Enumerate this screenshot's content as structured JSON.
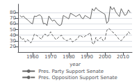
{
  "chart_data": {
    "type": "line",
    "xlabel": "year",
    "x": [
      1953,
      1954,
      1955,
      1956,
      1957,
      1958,
      1959,
      1960,
      1961,
      1962,
      1963,
      1964,
      1965,
      1966,
      1967,
      1968,
      1969,
      1970,
      1971,
      1972,
      1973,
      1974,
      1975,
      1976,
      1977,
      1978,
      1979,
      1980,
      1981,
      1982,
      1983,
      1984,
      1985,
      1986,
      1987,
      1988,
      1989,
      1990,
      1991,
      1992,
      1993,
      1994,
      1995,
      1996,
      1997,
      1998,
      1999,
      2000,
      2001,
      2002,
      2003,
      2004,
      2005,
      2006,
      2007,
      2008,
      2009,
      2010,
      2011,
      2012,
      2013,
      2014
    ],
    "series": [
      {
        "name": "Pres. Party Support Senate",
        "color": "#666666",
        "line_style": "solid",
        "values": [
          75,
          72,
          74,
          70,
          68,
          65,
          62,
          60,
          74,
          73,
          75,
          76,
          73,
          60,
          61,
          57,
          74,
          69,
          65,
          67,
          63,
          59,
          57,
          59,
          75,
          73,
          71,
          69,
          79,
          77,
          75,
          73,
          75,
          77,
          71,
          69,
          75,
          73,
          71,
          69,
          87,
          83,
          89,
          85,
          83,
          81,
          79,
          77,
          61,
          65,
          91,
          85,
          89,
          81,
          77,
          73,
          87,
          81,
          75,
          77,
          85,
          80
        ]
      },
      {
        "name": "Pres. Opposition Support Senate",
        "color": "#666666",
        "line_style": "dashed",
        "values": [
          38,
          32,
          34,
          28,
          32,
          30,
          26,
          32,
          42,
          40,
          38,
          35,
          33,
          40,
          42,
          38,
          40,
          46,
          40,
          36,
          32,
          35,
          38,
          40,
          34,
          32,
          30,
          32,
          34,
          28,
          30,
          32,
          34,
          40,
          38,
          36,
          38,
          40,
          42,
          44,
          26,
          24,
          36,
          30,
          34,
          36,
          30,
          32,
          48,
          52,
          50,
          46,
          44,
          40,
          36,
          32,
          30,
          34,
          38,
          40,
          46,
          42
        ]
      }
    ],
    "xlim": [
      1952,
      2015
    ],
    "xticks": [
      1960,
      1970,
      1980,
      1990,
      2000,
      2010
    ],
    "ylim": [
      10,
      95
    ],
    "yticks": [
      20,
      30,
      40,
      50,
      60,
      70,
      80
    ],
    "grid": true,
    "legend": "bottom"
  }
}
